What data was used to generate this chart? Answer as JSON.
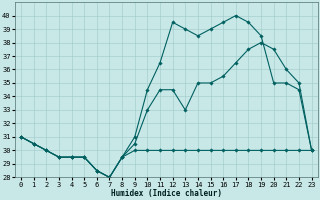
{
  "xlabel": "Humidex (Indice chaleur)",
  "xlim": [
    -0.5,
    23.5
  ],
  "ylim": [
    28,
    41
  ],
  "yticks": [
    28,
    29,
    30,
    31,
    32,
    33,
    34,
    35,
    36,
    37,
    38,
    39,
    40
  ],
  "xticks": [
    0,
    1,
    2,
    3,
    4,
    5,
    6,
    7,
    8,
    9,
    10,
    11,
    12,
    13,
    14,
    15,
    16,
    17,
    18,
    19,
    20,
    21,
    22,
    23
  ],
  "bg_color": "#c8e8e8",
  "grid_color": "#a0c8c8",
  "line_color": "#006060",
  "series1_y": [
    31.0,
    30.5,
    30.0,
    29.5,
    29.5,
    29.5,
    28.5,
    28.0,
    29.5,
    30.0,
    30.0,
    30.0,
    30.0,
    30.0,
    30.0,
    30.0,
    30.0,
    30.0,
    30.0,
    30.0,
    30.0,
    30.0,
    30.0,
    30.0
  ],
  "series2_y": [
    31.0,
    30.5,
    30.0,
    29.5,
    29.5,
    29.5,
    28.5,
    28.0,
    29.5,
    30.5,
    33.0,
    34.5,
    34.5,
    33.0,
    35.0,
    35.0,
    35.5,
    36.5,
    37.5,
    38.0,
    37.5,
    36.0,
    35.0,
    30.0
  ],
  "series3_y": [
    31.0,
    30.5,
    30.0,
    29.5,
    29.5,
    29.5,
    28.5,
    28.0,
    29.5,
    31.0,
    34.5,
    36.5,
    39.5,
    39.0,
    38.5,
    39.0,
    39.5,
    40.0,
    39.5,
    38.5,
    35.0,
    35.0,
    34.5,
    30.0
  ],
  "marker": "D",
  "markersize": 1.8,
  "linewidth": 0.8,
  "tick_fontsize": 5.0,
  "xlabel_fontsize": 5.5
}
